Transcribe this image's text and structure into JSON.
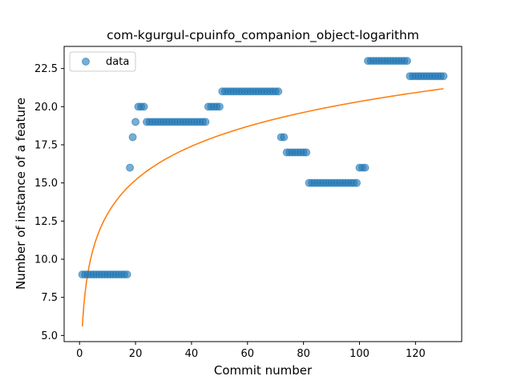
{
  "chart_data": {
    "type": "scatter",
    "title": "com-kgurgul-cpuinfo_companion_object-logarithm",
    "xlabel": "Commit number",
    "ylabel": "Number of instance of a feature",
    "xlim": [
      -5.5,
      136.5
    ],
    "ylim": [
      4.6,
      23.95
    ],
    "xticks": [
      0,
      20,
      40,
      60,
      80,
      100,
      120
    ],
    "yticks": [
      5.0,
      7.5,
      10.0,
      12.5,
      15.0,
      17.5,
      20.0,
      22.5
    ],
    "xtick_labels": [
      "0",
      "20",
      "40",
      "60",
      "80",
      "100",
      "120"
    ],
    "ytick_labels": [
      "5.0",
      "7.5",
      "10.0",
      "12.5",
      "15.0",
      "17.5",
      "20.0",
      "22.5"
    ],
    "legend": {
      "placement": "upper-left",
      "entries": [
        "data"
      ]
    },
    "colors": {
      "scatter": "#1f77b4",
      "fit": "#ff7f0e"
    },
    "series": [
      {
        "name": "data",
        "kind": "scatter",
        "segments": [
          {
            "x_from": 1,
            "x_to": 17,
            "y": 9
          },
          {
            "x_from": 18,
            "x_to": 18,
            "y": 16
          },
          {
            "x_from": 19,
            "x_to": 19,
            "y": 18
          },
          {
            "x_from": 20,
            "x_to": 20,
            "y": 19
          },
          {
            "x_from": 21,
            "x_to": 23,
            "y": 20
          },
          {
            "x_from": 24,
            "x_to": 45,
            "y": 19
          },
          {
            "x_from": 46,
            "x_to": 50,
            "y": 20
          },
          {
            "x_from": 51,
            "x_to": 71,
            "y": 21
          },
          {
            "x_from": 72,
            "x_to": 73,
            "y": 18
          },
          {
            "x_from": 74,
            "x_to": 81,
            "y": 17
          },
          {
            "x_from": 82,
            "x_to": 99,
            "y": 15
          },
          {
            "x_from": 100,
            "x_to": 102,
            "y": 16
          },
          {
            "x_from": 103,
            "x_to": 117,
            "y": 23
          },
          {
            "x_from": 118,
            "x_to": 130,
            "y": 22
          }
        ]
      },
      {
        "kind": "line",
        "fit": "logarithmic",
        "x_range": [
          1,
          130
        ],
        "coefficients": {
          "a": 5.6,
          "b": 3.2
        }
      }
    ]
  }
}
